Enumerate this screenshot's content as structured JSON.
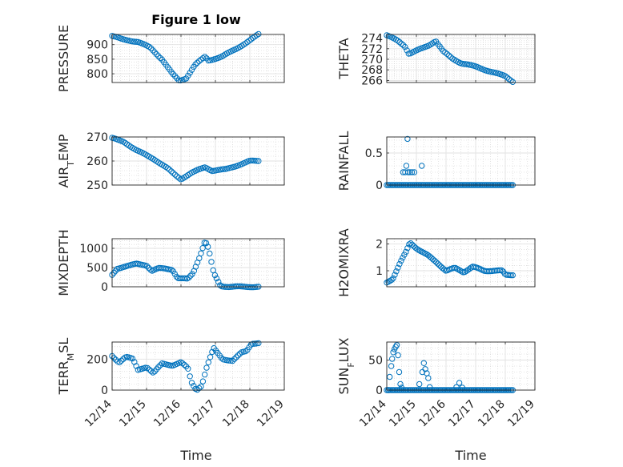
{
  "figure": {
    "title": "Figure 1 low",
    "marker_color": "#0072BD",
    "xlabel": "Time",
    "x_ticks": [
      "12/14",
      "12/15",
      "12/16",
      "12/17",
      "12/18",
      "12/19"
    ]
  },
  "chart_data": [
    {
      "type": "scatter",
      "ylabel": "PRESSURE",
      "ylim": [
        770,
        935
      ],
      "yticks": [
        800,
        850,
        900
      ],
      "xlim": [
        0,
        5
      ],
      "grid": true,
      "knots": [
        [
          0,
          930
        ],
        [
          0.3,
          918
        ],
        [
          0.75,
          910
        ],
        [
          1.1,
          890
        ],
        [
          1.45,
          850
        ],
        [
          1.75,
          800
        ],
        [
          1.95,
          775
        ],
        [
          2.15,
          785
        ],
        [
          2.4,
          830
        ],
        [
          2.7,
          858
        ],
        [
          2.8,
          845
        ],
        [
          3.2,
          860
        ],
        [
          3.6,
          885
        ],
        [
          4.0,
          915
        ],
        [
          4.25,
          935
        ]
      ],
      "n": 80
    },
    {
      "type": "scatter",
      "ylabel": "THETA",
      "ylim": [
        265.6,
        274.7
      ],
      "yticks": [
        266,
        268,
        270,
        272,
        274
      ],
      "xlim": [
        0,
        5
      ],
      "grid": true,
      "knots": [
        [
          0,
          274.5
        ],
        [
          0.35,
          273.6
        ],
        [
          0.6,
          272.6
        ],
        [
          0.75,
          271.0
        ],
        [
          1.0,
          271.6
        ],
        [
          1.4,
          272.6
        ],
        [
          1.65,
          273.5
        ],
        [
          1.9,
          271.5
        ],
        [
          2.2,
          270.2
        ],
        [
          2.5,
          269.3
        ],
        [
          3.0,
          268.6
        ],
        [
          3.6,
          267.5
        ],
        [
          4.0,
          266.8
        ],
        [
          4.25,
          265.8
        ]
      ],
      "n": 70
    },
    {
      "type": "scatter",
      "ylabel": "AIR_TEMP",
      "ylim": [
        250,
        270
      ],
      "yticks": [
        250,
        260,
        270
      ],
      "xlim": [
        0,
        5
      ],
      "grid": true,
      "knots": [
        [
          0,
          269.5
        ],
        [
          0.35,
          268
        ],
        [
          0.7,
          264.5
        ],
        [
          1.2,
          261
        ],
        [
          1.6,
          257
        ],
        [
          1.85,
          254
        ],
        [
          2.0,
          252.5
        ],
        [
          2.3,
          255
        ],
        [
          2.7,
          257.5
        ],
        [
          2.9,
          256
        ],
        [
          3.3,
          256.5
        ],
        [
          3.7,
          258.5
        ],
        [
          4.0,
          260
        ],
        [
          4.25,
          260
        ]
      ],
      "n": 80
    },
    {
      "type": "scatter",
      "ylabel": "RAINFALL",
      "ylim": [
        0,
        0.75
      ],
      "yticks": [
        0,
        0.5
      ],
      "xlim": [
        0,
        5
      ],
      "grid": true,
      "points": [
        [
          0.55,
          0.2
        ],
        [
          0.62,
          0.2
        ],
        [
          0.66,
          0.3
        ],
        [
          0.7,
          0.72
        ],
        [
          0.72,
          0.2
        ],
        [
          0.78,
          0.2
        ],
        [
          0.85,
          0.2
        ],
        [
          0.93,
          0.2
        ],
        [
          1.18,
          0.3
        ]
      ],
      "zero_range": [
        0,
        4.25
      ],
      "n": 90
    },
    {
      "type": "scatter",
      "ylabel": "MIXDEPTH",
      "ylim": [
        0,
        1250
      ],
      "yticks": [
        0,
        500,
        1000
      ],
      "xlim": [
        0,
        5
      ],
      "grid": true,
      "knots": [
        [
          0,
          300
        ],
        [
          0.15,
          470
        ],
        [
          0.35,
          530
        ],
        [
          0.7,
          590
        ],
        [
          1.0,
          560
        ],
        [
          1.15,
          420
        ],
        [
          1.35,
          480
        ],
        [
          1.75,
          450
        ],
        [
          1.9,
          230
        ],
        [
          2.2,
          200
        ],
        [
          2.35,
          350
        ],
        [
          2.55,
          800
        ],
        [
          2.7,
          1200
        ],
        [
          2.8,
          1000
        ],
        [
          2.95,
          350
        ],
        [
          3.15,
          20
        ],
        [
          3.4,
          0
        ],
        [
          4.25,
          0
        ]
      ],
      "n": 85
    },
    {
      "type": "scatter",
      "ylabel": "H2OMIXRA",
      "ylim": [
        0.4,
        2.2
      ],
      "yticks": [
        1,
        2
      ],
      "xlim": [
        0,
        5
      ],
      "grid": true,
      "knots": [
        [
          0,
          0.55
        ],
        [
          0.2,
          0.7
        ],
        [
          0.45,
          1.3
        ],
        [
          0.65,
          1.7
        ],
        [
          0.78,
          2.05
        ],
        [
          1.0,
          1.85
        ],
        [
          1.35,
          1.6
        ],
        [
          1.7,
          1.3
        ],
        [
          2.0,
          1.0
        ],
        [
          2.3,
          1.1
        ],
        [
          2.6,
          0.95
        ],
        [
          2.9,
          1.15
        ],
        [
          3.3,
          1.0
        ],
        [
          3.9,
          1.0
        ],
        [
          4.0,
          0.85
        ],
        [
          4.25,
          0.85
        ]
      ],
      "n": 80
    },
    {
      "type": "scatter",
      "ylabel": "TERR_MSL",
      "ylim": [
        0,
        310
      ],
      "yticks": [
        0,
        200
      ],
      "xlim": [
        0,
        5
      ],
      "grid": true,
      "knots": [
        [
          0,
          220
        ],
        [
          0.2,
          180
        ],
        [
          0.4,
          215
        ],
        [
          0.6,
          200
        ],
        [
          0.75,
          130
        ],
        [
          1.0,
          150
        ],
        [
          1.2,
          110
        ],
        [
          1.45,
          170
        ],
        [
          1.75,
          160
        ],
        [
          2.0,
          180
        ],
        [
          2.2,
          140
        ],
        [
          2.3,
          50
        ],
        [
          2.45,
          0
        ],
        [
          2.6,
          30
        ],
        [
          2.75,
          150
        ],
        [
          2.95,
          270
        ],
        [
          3.2,
          200
        ],
        [
          3.5,
          190
        ],
        [
          3.75,
          240
        ],
        [
          3.9,
          250
        ],
        [
          4.05,
          300
        ],
        [
          4.25,
          305
        ]
      ],
      "n": 80
    },
    {
      "type": "scatter",
      "ylabel": "SUN_FLUX",
      "ylim": [
        0,
        80
      ],
      "yticks": [
        0,
        50
      ],
      "xlim": [
        0,
        5
      ],
      "grid": true,
      "points": [
        [
          0.05,
          0
        ],
        [
          0.1,
          22
        ],
        [
          0.15,
          40
        ],
        [
          0.18,
          52
        ],
        [
          0.22,
          63
        ],
        [
          0.26,
          68
        ],
        [
          0.3,
          72
        ],
        [
          0.34,
          75
        ],
        [
          0.38,
          58
        ],
        [
          0.42,
          30
        ],
        [
          0.46,
          10
        ],
        [
          0.5,
          4
        ],
        [
          1.1,
          10
        ],
        [
          1.2,
          30
        ],
        [
          1.25,
          45
        ],
        [
          1.3,
          35
        ],
        [
          1.35,
          28
        ],
        [
          1.4,
          20
        ],
        [
          1.45,
          5
        ],
        [
          2.35,
          5
        ],
        [
          2.45,
          12
        ],
        [
          2.55,
          4
        ]
      ],
      "zero_range": [
        0,
        4.25
      ],
      "n": 90
    }
  ]
}
